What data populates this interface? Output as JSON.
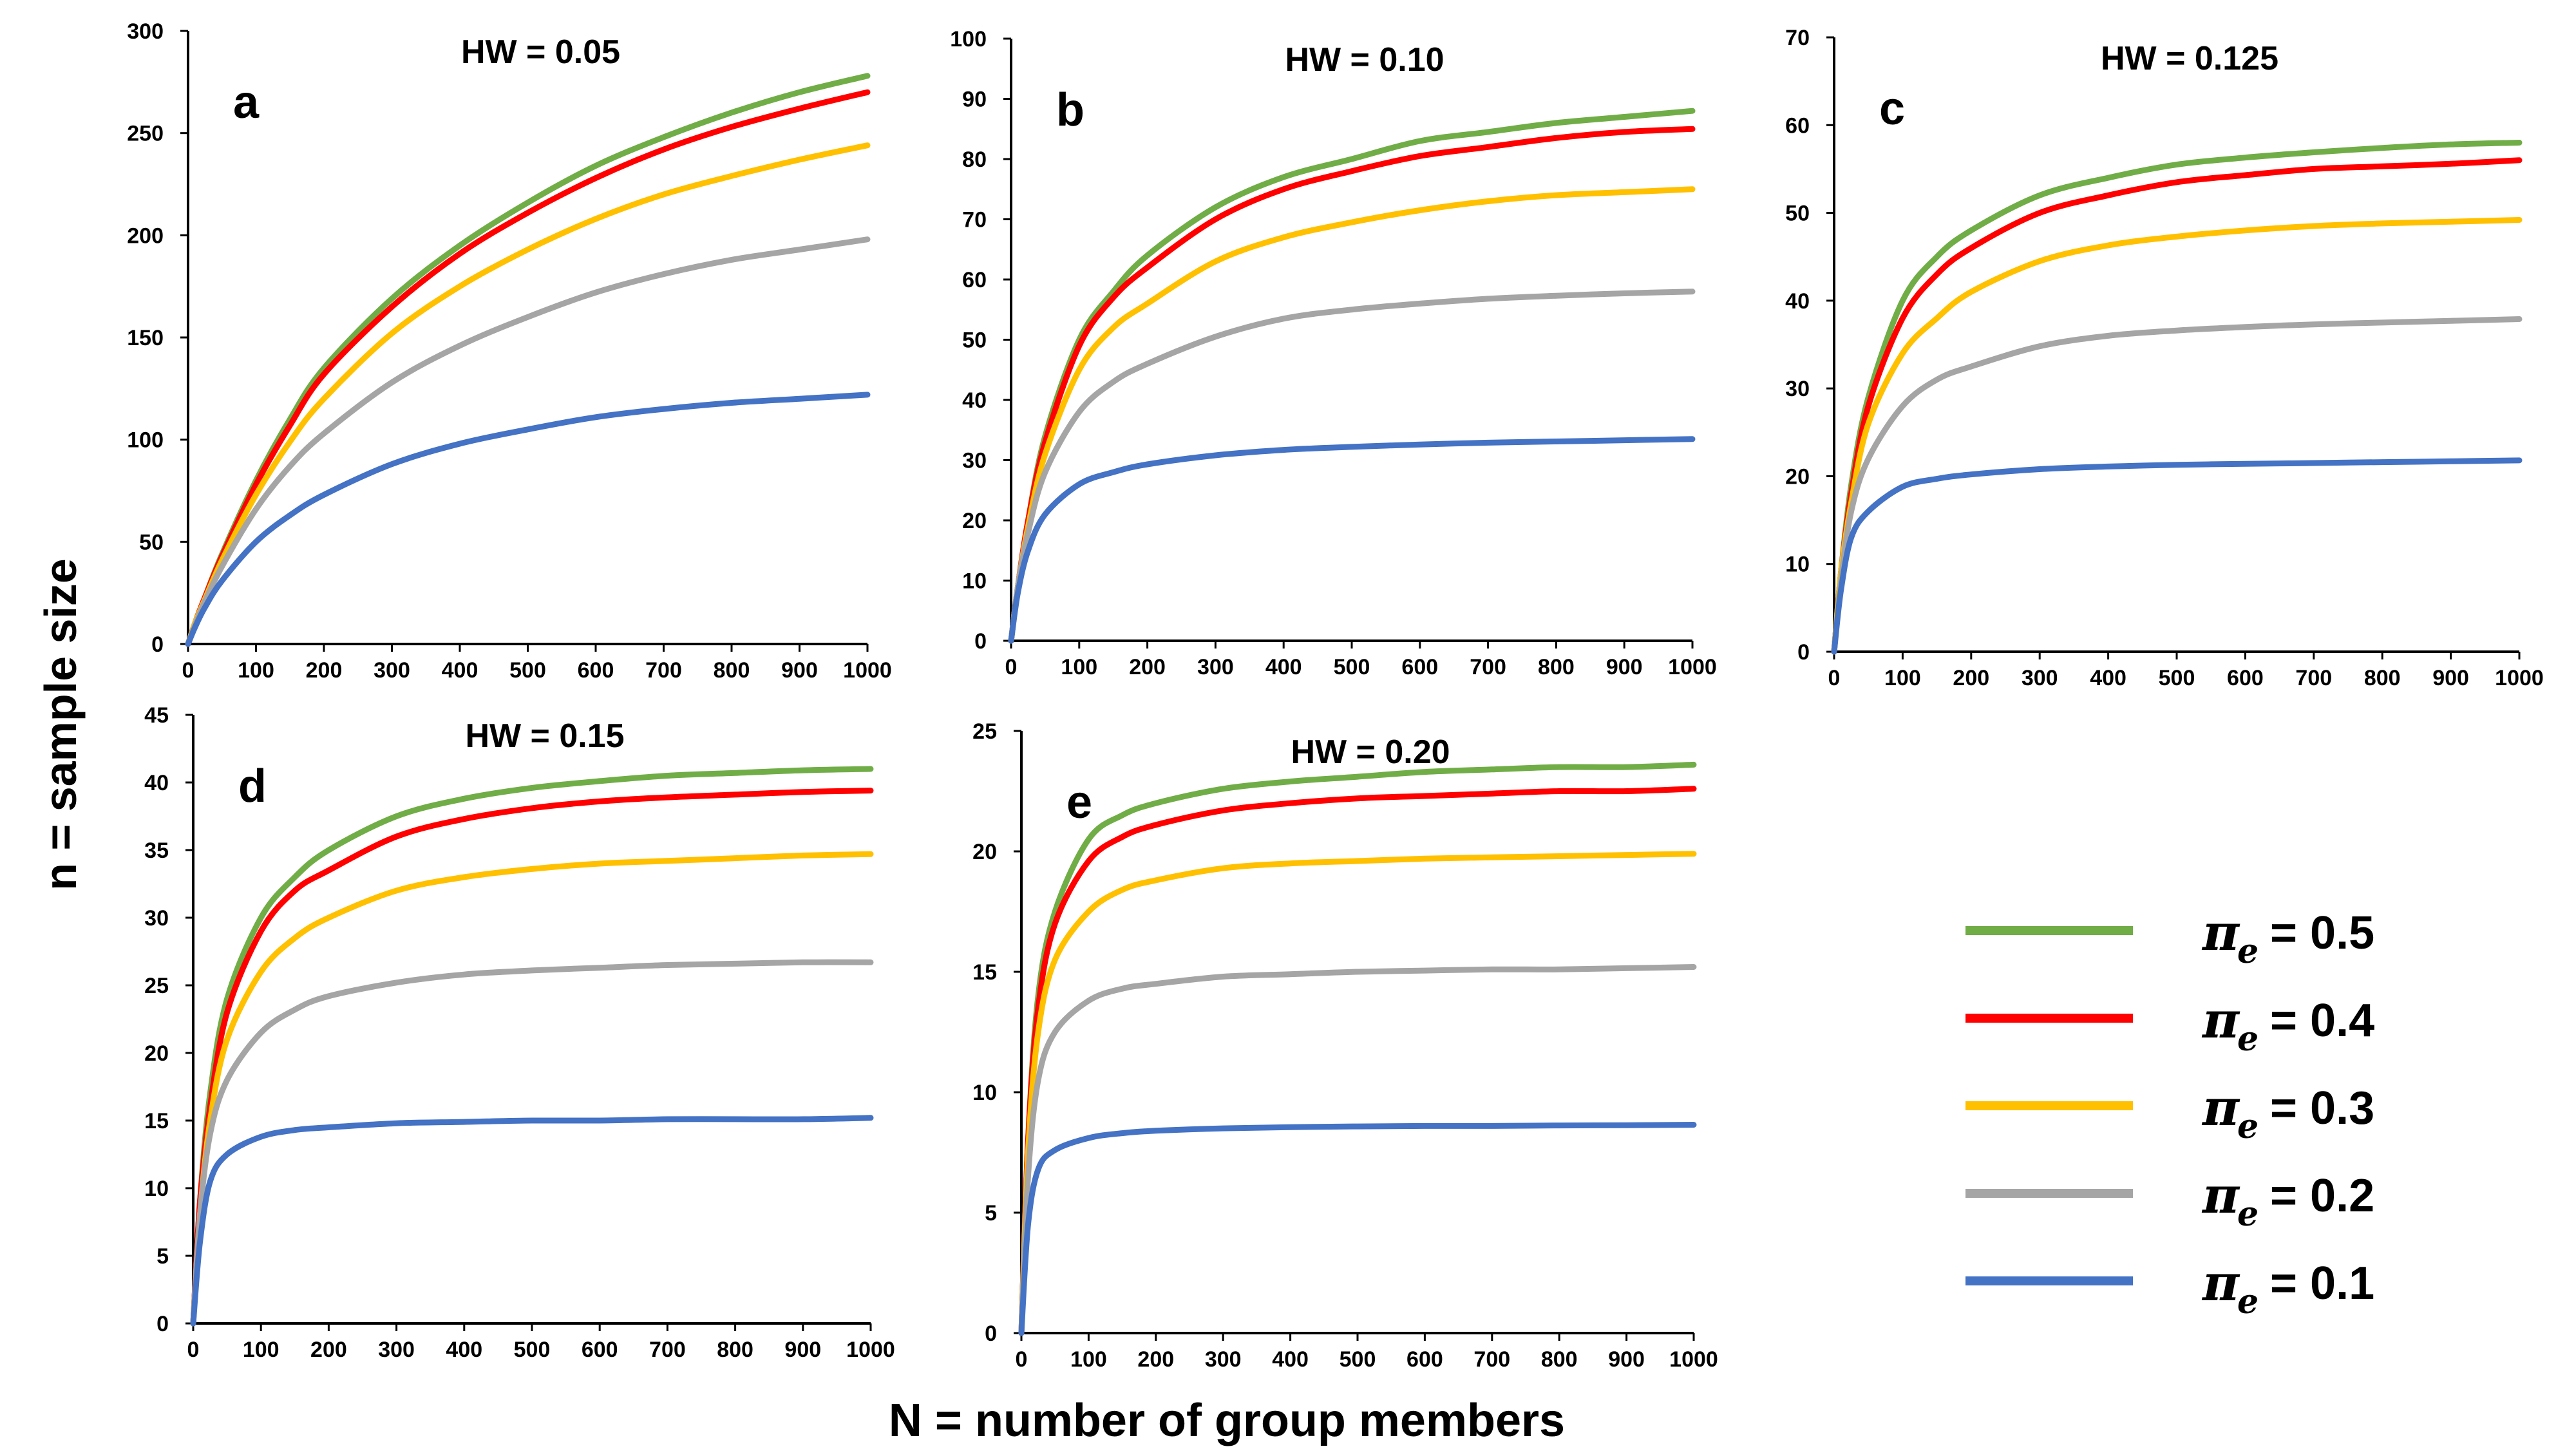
{
  "figure": {
    "ylabel": "n = sample size",
    "xlabel": "N = number of group members"
  },
  "legend": {
    "items": [
      {
        "label": "= 0.5",
        "color": "#70AD47"
      },
      {
        "label": "= 0.4",
        "color": "#FF0000"
      },
      {
        "label": "= 0.3",
        "color": "#FFC000"
      },
      {
        "label": "= 0.2",
        "color": "#A5A5A5"
      },
      {
        "label": "= 0.1",
        "color": "#4472C4"
      }
    ]
  },
  "chart_data": [
    {
      "type": "line",
      "panel": "a",
      "title": "HW =  0.05",
      "xlim": [
        0,
        1000
      ],
      "xticks": [
        0,
        100,
        200,
        300,
        400,
        500,
        600,
        700,
        800,
        900,
        1000
      ],
      "ylim": [
        0,
        300
      ],
      "yticks": [
        0,
        50,
        100,
        150,
        200,
        250,
        300
      ],
      "series": [
        {
          "name": "π_e = 0.5",
          "color": "#70AD47",
          "x": [
            0,
            10,
            25,
            50,
            100,
            150,
            200,
            300,
            400,
            500,
            600,
            700,
            800,
            900,
            1000
          ],
          "y": [
            0,
            10,
            23,
            44,
            80,
            110,
            135,
            169,
            195,
            216,
            234,
            248,
            260,
            270,
            278
          ]
        },
        {
          "name": "π_e = 0.4",
          "color": "#FF0000",
          "x": [
            0,
            10,
            25,
            50,
            100,
            150,
            200,
            300,
            400,
            500,
            600,
            700,
            800,
            900,
            1000
          ],
          "y": [
            0,
            10,
            23,
            43,
            78,
            107,
            132,
            165,
            191,
            211,
            228,
            242,
            253,
            262,
            270
          ]
        },
        {
          "name": "π_e = 0.3",
          "color": "#FFC000",
          "x": [
            0,
            10,
            25,
            50,
            100,
            150,
            200,
            300,
            400,
            500,
            600,
            700,
            800,
            900,
            1000
          ],
          "y": [
            0,
            10,
            22,
            41,
            73,
            99,
            120,
            152,
            175,
            193,
            208,
            220,
            229,
            237,
            244
          ]
        },
        {
          "name": "π_e = 0.2",
          "color": "#A5A5A5",
          "x": [
            0,
            10,
            25,
            50,
            100,
            150,
            200,
            300,
            400,
            500,
            600,
            700,
            800,
            900,
            1000
          ],
          "y": [
            0,
            9,
            21,
            38,
            66,
            87,
            103,
            128,
            146,
            160,
            172,
            181,
            188,
            193,
            198
          ]
        },
        {
          "name": "π_e = 0.1",
          "color": "#4472C4",
          "x": [
            0,
            10,
            25,
            50,
            100,
            150,
            200,
            300,
            400,
            500,
            600,
            700,
            800,
            900,
            1000
          ],
          "y": [
            0,
            8,
            18,
            31,
            50,
            63,
            73,
            88,
            98,
            105,
            111,
            115,
            118,
            120,
            122
          ]
        }
      ]
    },
    {
      "type": "line",
      "panel": "b",
      "title": "HW =  0.10",
      "xlim": [
        0,
        1000
      ],
      "xticks": [
        0,
        100,
        200,
        300,
        400,
        500,
        600,
        700,
        800,
        900,
        1000
      ],
      "ylim": [
        0,
        100
      ],
      "yticks": [
        0,
        10,
        20,
        30,
        40,
        50,
        60,
        70,
        80,
        90,
        100
      ],
      "series": [
        {
          "name": "π_e = 0.5",
          "color": "#70AD47",
          "x": [
            0,
            10,
            25,
            50,
            100,
            150,
            200,
            300,
            400,
            500,
            600,
            700,
            800,
            900,
            1000
          ],
          "y": [
            0,
            9,
            20,
            34,
            50,
            58,
            64,
            72,
            77,
            80,
            83,
            84.5,
            86,
            87,
            88
          ]
        },
        {
          "name": "π_e = 0.4",
          "color": "#FF0000",
          "x": [
            0,
            10,
            25,
            50,
            100,
            150,
            200,
            300,
            400,
            500,
            600,
            700,
            800,
            900,
            1000
          ],
          "y": [
            0,
            9,
            20,
            33,
            49,
            57,
            62,
            70,
            75,
            78,
            80.5,
            82,
            83.5,
            84.5,
            85
          ]
        },
        {
          "name": "π_e = 0.3",
          "color": "#FFC000",
          "x": [
            0,
            10,
            25,
            50,
            100,
            150,
            200,
            300,
            400,
            500,
            600,
            700,
            800,
            900,
            1000
          ],
          "y": [
            0,
            9,
            19,
            31,
            45,
            52,
            56,
            63,
            67,
            69.5,
            71.5,
            73,
            74,
            74.5,
            75
          ]
        },
        {
          "name": "π_e = 0.2",
          "color": "#A5A5A5",
          "x": [
            0,
            10,
            25,
            50,
            100,
            150,
            200,
            300,
            400,
            500,
            600,
            700,
            800,
            900,
            1000
          ],
          "y": [
            0,
            9,
            18,
            28,
            38,
            43,
            46,
            50.5,
            53.5,
            55,
            56,
            56.8,
            57.3,
            57.7,
            58
          ]
        },
        {
          "name": "π_e = 0.1",
          "color": "#4472C4",
          "x": [
            0,
            10,
            25,
            50,
            100,
            150,
            200,
            300,
            400,
            500,
            600,
            700,
            800,
            900,
            1000
          ],
          "y": [
            0,
            8,
            15,
            21,
            26,
            28,
            29.3,
            30.8,
            31.7,
            32.2,
            32.6,
            32.9,
            33.1,
            33.3,
            33.5
          ]
        }
      ]
    },
    {
      "type": "line",
      "panel": "c",
      "title": "HW =  0.125",
      "xlim": [
        0,
        1000
      ],
      "xticks": [
        0,
        100,
        200,
        300,
        400,
        500,
        600,
        700,
        800,
        900,
        1000
      ],
      "ylim": [
        0,
        70
      ],
      "yticks": [
        0,
        10,
        20,
        30,
        40,
        50,
        60,
        70
      ],
      "series": [
        {
          "name": "π_e = 0.5",
          "color": "#70AD47",
          "x": [
            0,
            10,
            25,
            50,
            100,
            150,
            200,
            300,
            400,
            500,
            600,
            700,
            800,
            900,
            1000
          ],
          "y": [
            0,
            9,
            19,
            29,
            40,
            45,
            48,
            52,
            54,
            55.5,
            56.3,
            56.9,
            57.4,
            57.8,
            58
          ]
        },
        {
          "name": "π_e = 0.4",
          "color": "#FF0000",
          "x": [
            0,
            10,
            25,
            50,
            100,
            150,
            200,
            300,
            400,
            500,
            600,
            700,
            800,
            900,
            1000
          ],
          "y": [
            0,
            9,
            18,
            28,
            38,
            43,
            46,
            50,
            52,
            53.5,
            54.3,
            55,
            55.3,
            55.6,
            56
          ]
        },
        {
          "name": "π_e = 0.3",
          "color": "#FFC000",
          "x": [
            0,
            10,
            25,
            50,
            100,
            150,
            200,
            300,
            400,
            500,
            600,
            700,
            800,
            900,
            1000
          ],
          "y": [
            0,
            9,
            17,
            26,
            34,
            38,
            41,
            44.5,
            46.3,
            47.3,
            48,
            48.5,
            48.8,
            49,
            49.2
          ]
        },
        {
          "name": "π_e = 0.2",
          "color": "#A5A5A5",
          "x": [
            0,
            10,
            25,
            50,
            100,
            150,
            200,
            300,
            400,
            500,
            600,
            700,
            800,
            900,
            1000
          ],
          "y": [
            0,
            8,
            16,
            22,
            28,
            31,
            32.5,
            34.8,
            36,
            36.6,
            37,
            37.3,
            37.5,
            37.7,
            37.9
          ]
        },
        {
          "name": "π_e = 0.1",
          "color": "#4472C4",
          "x": [
            0,
            10,
            25,
            50,
            100,
            150,
            200,
            300,
            400,
            500,
            600,
            700,
            800,
            900,
            1000
          ],
          "y": [
            0,
            7,
            13,
            16,
            18.8,
            19.7,
            20.2,
            20.8,
            21.1,
            21.3,
            21.4,
            21.5,
            21.6,
            21.7,
            21.8
          ]
        }
      ]
    },
    {
      "type": "line",
      "panel": "d",
      "title": "HW =  0.15",
      "xlim": [
        0,
        1000
      ],
      "xticks": [
        0,
        100,
        200,
        300,
        400,
        500,
        600,
        700,
        800,
        900,
        1000
      ],
      "ylim": [
        0,
        45
      ],
      "yticks": [
        0,
        5,
        10,
        15,
        20,
        25,
        30,
        35,
        40,
        45
      ],
      "series": [
        {
          "name": "π_e = 0.5",
          "color": "#70AD47",
          "x": [
            0,
            10,
            25,
            50,
            100,
            150,
            200,
            300,
            400,
            500,
            600,
            700,
            800,
            900,
            1000
          ],
          "y": [
            0,
            9,
            17,
            24,
            30,
            33,
            35,
            37.5,
            38.8,
            39.6,
            40.1,
            40.5,
            40.7,
            40.9,
            41
          ]
        },
        {
          "name": "π_e = 0.4",
          "color": "#FF0000",
          "x": [
            0,
            10,
            25,
            50,
            100,
            150,
            200,
            300,
            400,
            500,
            600,
            700,
            800,
            900,
            1000
          ],
          "y": [
            0,
            9,
            16,
            23,
            29,
            32,
            33.5,
            36,
            37.3,
            38.1,
            38.6,
            38.9,
            39.1,
            39.3,
            39.4
          ]
        },
        {
          "name": "π_e = 0.3",
          "color": "#FFC000",
          "x": [
            0,
            10,
            25,
            50,
            100,
            150,
            200,
            300,
            400,
            500,
            600,
            700,
            800,
            900,
            1000
          ],
          "y": [
            0,
            8,
            15,
            21,
            26,
            28.5,
            30,
            32,
            33,
            33.6,
            34,
            34.2,
            34.4,
            34.6,
            34.7
          ]
        },
        {
          "name": "π_e = 0.2",
          "color": "#A5A5A5",
          "x": [
            0,
            10,
            25,
            50,
            100,
            150,
            200,
            300,
            400,
            500,
            600,
            700,
            800,
            900,
            1000
          ],
          "y": [
            0,
            8,
            14,
            18,
            21.5,
            23.2,
            24.2,
            25.2,
            25.8,
            26.1,
            26.3,
            26.5,
            26.6,
            26.7,
            26.7
          ]
        },
        {
          "name": "π_e = 0.1",
          "color": "#4472C4",
          "x": [
            0,
            10,
            25,
            50,
            100,
            150,
            200,
            300,
            400,
            500,
            600,
            700,
            800,
            900,
            1000
          ],
          "y": [
            0,
            6,
            10.5,
            12.5,
            13.8,
            14.3,
            14.5,
            14.8,
            14.9,
            15,
            15,
            15.1,
            15.1,
            15.1,
            15.2
          ]
        }
      ]
    },
    {
      "type": "line",
      "panel": "e",
      "title": "HW =  0.20",
      "xlim": [
        0,
        1000
      ],
      "xticks": [
        0,
        100,
        200,
        300,
        400,
        500,
        600,
        700,
        800,
        900,
        1000
      ],
      "ylim": [
        0,
        25
      ],
      "yticks": [
        0,
        5,
        10,
        15,
        20,
        25
      ],
      "series": [
        {
          "name": "π_e = 0.5",
          "color": "#70AD47",
          "x": [
            0,
            10,
            25,
            50,
            100,
            150,
            200,
            300,
            400,
            500,
            600,
            700,
            800,
            900,
            1000
          ],
          "y": [
            0,
            8,
            14,
            17.5,
            20.5,
            21.5,
            22,
            22.6,
            22.9,
            23.1,
            23.3,
            23.4,
            23.5,
            23.5,
            23.6
          ]
        },
        {
          "name": "π_e = 0.4",
          "color": "#FF0000",
          "x": [
            0,
            10,
            25,
            50,
            100,
            150,
            200,
            300,
            400,
            500,
            600,
            700,
            800,
            900,
            1000
          ],
          "y": [
            0,
            8,
            13.5,
            17,
            19.6,
            20.6,
            21.1,
            21.7,
            22,
            22.2,
            22.3,
            22.4,
            22.5,
            22.5,
            22.6
          ]
        },
        {
          "name": "π_e = 0.3",
          "color": "#FFC000",
          "x": [
            0,
            10,
            25,
            50,
            100,
            150,
            200,
            300,
            400,
            500,
            600,
            700,
            800,
            900,
            1000
          ],
          "y": [
            0,
            7.5,
            12.5,
            15.5,
            17.5,
            18.4,
            18.8,
            19.3,
            19.5,
            19.6,
            19.7,
            19.75,
            19.8,
            19.85,
            19.9
          ]
        },
        {
          "name": "π_e = 0.2",
          "color": "#A5A5A5",
          "x": [
            0,
            10,
            25,
            50,
            100,
            150,
            200,
            300,
            400,
            500,
            600,
            700,
            800,
            900,
            1000
          ],
          "y": [
            0,
            6.5,
            10.5,
            12.5,
            13.8,
            14.3,
            14.5,
            14.8,
            14.9,
            15,
            15.05,
            15.1,
            15.1,
            15.15,
            15.2
          ]
        },
        {
          "name": "π_e = 0.1",
          "color": "#4472C4",
          "x": [
            0,
            10,
            25,
            50,
            100,
            150,
            200,
            300,
            400,
            500,
            600,
            700,
            800,
            900,
            1000
          ],
          "y": [
            0,
            4.5,
            6.8,
            7.6,
            8.1,
            8.3,
            8.4,
            8.5,
            8.55,
            8.58,
            8.6,
            8.6,
            8.62,
            8.63,
            8.65
          ]
        }
      ]
    }
  ]
}
